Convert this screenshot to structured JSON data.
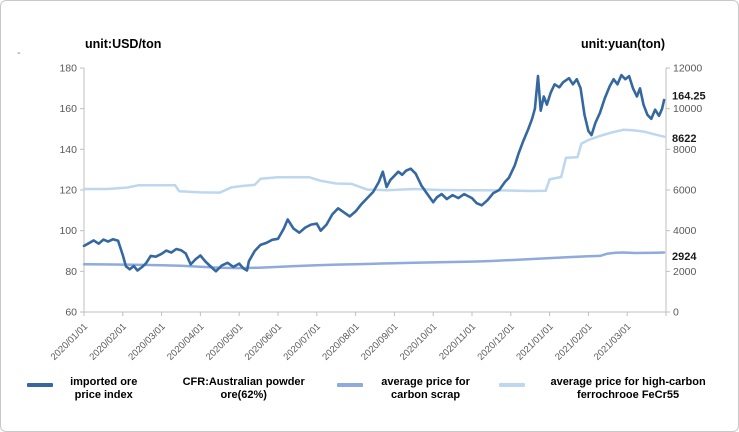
{
  "header": {
    "left_unit_label": "unit:USD/ton",
    "right_unit_label": "unit:yuan(ton)",
    "corner_mark": "-"
  },
  "colors": {
    "imported_ore": "#3568A0",
    "carbon_scrap": "#8FAADC",
    "ferrochrome": "#BDD7EE",
    "axis_line": "#BFBFBF",
    "axis_text": "#595959",
    "data_label_text": "#1a1a1a"
  },
  "legend": {
    "entries": [
      {
        "label": "imported ore price index",
        "color": "#3568A0"
      },
      {
        "label": "CFR:Australian powder ore(62%)",
        "color": null
      },
      {
        "label": "average price for carbon scrap",
        "color": "#8FAADC"
      },
      {
        "label": "average price for high-carbon ferrochrooe FeCr55",
        "color": "#BDD7EE"
      }
    ]
  },
  "chart_data": {
    "type": "line",
    "grid": false,
    "legend_position": "bottom",
    "months_span": 15,
    "x_labels": [
      "2020/01/01",
      "2020/02/01",
      "2020/03/01",
      "2020/04/01",
      "2020/05/01",
      "2020/06/01",
      "2020/07/01",
      "2020/08/01",
      "2020/09/01",
      "2020/10/01",
      "2020/11/01",
      "2020/12/01",
      "2021/01/01",
      "2021/02/01",
      "2021/03/01"
    ],
    "left_axis": {
      "title": "unit:USD/ton",
      "min": 60,
      "max": 180,
      "step": 20,
      "tick_values": [
        180,
        160,
        140,
        120,
        100,
        80,
        60
      ]
    },
    "right_axis": {
      "title": "unit:yuan(ton)",
      "min": 0,
      "max": 12000,
      "step": 2000,
      "tick_values": [
        12000,
        10000,
        8000,
        6000,
        4000,
        2000,
        0
      ]
    },
    "series": [
      {
        "name": "imported ore price index",
        "slug": "imported-ore-price-index",
        "axis": "left",
        "color": "#3568A0",
        "width": 2.6,
        "end_label": "164.25",
        "end_label_dy": -4,
        "points": [
          [
            0,
            92.5
          ],
          [
            0.12,
            93.8
          ],
          [
            0.25,
            95.2
          ],
          [
            0.38,
            93.6
          ],
          [
            0.5,
            95.6
          ],
          [
            0.62,
            94.6
          ],
          [
            0.75,
            95.8
          ],
          [
            0.88,
            95
          ],
          [
            1,
            88
          ],
          [
            1.08,
            82.5
          ],
          [
            1.18,
            81
          ],
          [
            1.28,
            82.6
          ],
          [
            1.38,
            80.4
          ],
          [
            1.5,
            82.2
          ],
          [
            1.6,
            84
          ],
          [
            1.72,
            87.6
          ],
          [
            1.85,
            87.2
          ],
          [
            2,
            88.6
          ],
          [
            2.12,
            90.2
          ],
          [
            2.25,
            89.2
          ],
          [
            2.38,
            91
          ],
          [
            2.5,
            90.4
          ],
          [
            2.62,
            88.8
          ],
          [
            2.75,
            83.4
          ],
          [
            2.88,
            86
          ],
          [
            3,
            87.8
          ],
          [
            3.12,
            85
          ],
          [
            3.25,
            82.6
          ],
          [
            3.4,
            80
          ],
          [
            3.55,
            82.8
          ],
          [
            3.7,
            84.2
          ],
          [
            3.85,
            82.2
          ],
          [
            4,
            83.8
          ],
          [
            4.1,
            81.6
          ],
          [
            4.2,
            80.4
          ],
          [
            4.25,
            85
          ],
          [
            4.4,
            90
          ],
          [
            4.55,
            93
          ],
          [
            4.7,
            94
          ],
          [
            4.85,
            95.5
          ],
          [
            5,
            96
          ],
          [
            5.15,
            101
          ],
          [
            5.25,
            105.5
          ],
          [
            5.4,
            101
          ],
          [
            5.55,
            99
          ],
          [
            5.7,
            101.5
          ],
          [
            5.85,
            103
          ],
          [
            6,
            103.5
          ],
          [
            6.1,
            100
          ],
          [
            6.25,
            103
          ],
          [
            6.4,
            108
          ],
          [
            6.55,
            111
          ],
          [
            6.7,
            109
          ],
          [
            6.85,
            107
          ],
          [
            7,
            109.5
          ],
          [
            7.15,
            113
          ],
          [
            7.3,
            116
          ],
          [
            7.45,
            119
          ],
          [
            7.6,
            124
          ],
          [
            7.7,
            129
          ],
          [
            7.8,
            121.5
          ],
          [
            7.9,
            125
          ],
          [
            8,
            127
          ],
          [
            8.1,
            129
          ],
          [
            8.2,
            127.5
          ],
          [
            8.3,
            129.5
          ],
          [
            8.42,
            130.5
          ],
          [
            8.55,
            128
          ],
          [
            8.7,
            122
          ],
          [
            8.85,
            118
          ],
          [
            9,
            114
          ],
          [
            9.1,
            116.5
          ],
          [
            9.22,
            118
          ],
          [
            9.35,
            115.5
          ],
          [
            9.5,
            117.5
          ],
          [
            9.65,
            116
          ],
          [
            9.8,
            118
          ],
          [
            9.9,
            117
          ],
          [
            10,
            116
          ],
          [
            10.12,
            113.5
          ],
          [
            10.25,
            112.5
          ],
          [
            10.4,
            115
          ],
          [
            10.55,
            118.5
          ],
          [
            10.7,
            120
          ],
          [
            10.85,
            124
          ],
          [
            10.95,
            126
          ],
          [
            11.1,
            132
          ],
          [
            11.2,
            138
          ],
          [
            11.32,
            144
          ],
          [
            11.45,
            150
          ],
          [
            11.55,
            155
          ],
          [
            11.62,
            160
          ],
          [
            11.7,
            176
          ],
          [
            11.77,
            159
          ],
          [
            11.85,
            166
          ],
          [
            11.93,
            162
          ],
          [
            12.03,
            168
          ],
          [
            12.13,
            172
          ],
          [
            12.25,
            170.5
          ],
          [
            12.35,
            173
          ],
          [
            12.5,
            175
          ],
          [
            12.6,
            172
          ],
          [
            12.7,
            174.5
          ],
          [
            12.8,
            170
          ],
          [
            12.9,
            157
          ],
          [
            13,
            149
          ],
          [
            13.08,
            147
          ],
          [
            13.18,
            153
          ],
          [
            13.3,
            158
          ],
          [
            13.42,
            165
          ],
          [
            13.55,
            171
          ],
          [
            13.65,
            174.5
          ],
          [
            13.75,
            172
          ],
          [
            13.85,
            176.5
          ],
          [
            13.95,
            174.5
          ],
          [
            14.05,
            176
          ],
          [
            14.15,
            170
          ],
          [
            14.25,
            166
          ],
          [
            14.33,
            170
          ],
          [
            14.42,
            162
          ],
          [
            14.52,
            157
          ],
          [
            14.62,
            155
          ],
          [
            14.72,
            159.5
          ],
          [
            14.82,
            156.5
          ],
          [
            14.9,
            160
          ],
          [
            14.95,
            164.25
          ]
        ]
      },
      {
        "name": "average price for carbon scrap",
        "slug": "average-price-for-carbon-scrap",
        "axis": "right",
        "color": "#8FAADC",
        "width": 2.5,
        "end_label": "2924",
        "end_label_dy": 4,
        "points": [
          [
            0,
            2350
          ],
          [
            0.5,
            2340
          ],
          [
            1,
            2330
          ],
          [
            1.5,
            2315
          ],
          [
            2,
            2300
          ],
          [
            2.5,
            2270
          ],
          [
            3,
            2230
          ],
          [
            3.5,
            2180
          ],
          [
            4,
            2160
          ],
          [
            4.5,
            2180
          ],
          [
            5,
            2220
          ],
          [
            5.5,
            2260
          ],
          [
            6,
            2300
          ],
          [
            6.5,
            2330
          ],
          [
            7,
            2350
          ],
          [
            7.5,
            2375
          ],
          [
            8,
            2400
          ],
          [
            8.5,
            2420
          ],
          [
            9,
            2440
          ],
          [
            9.5,
            2460
          ],
          [
            10,
            2480
          ],
          [
            10.5,
            2510
          ],
          [
            11,
            2550
          ],
          [
            11.5,
            2600
          ],
          [
            12,
            2650
          ],
          [
            12.5,
            2700
          ],
          [
            13,
            2740
          ],
          [
            13.3,
            2760
          ],
          [
            13.5,
            2870
          ],
          [
            13.7,
            2915
          ],
          [
            13.9,
            2925
          ],
          [
            14.2,
            2900
          ],
          [
            14.5,
            2905
          ],
          [
            14.75,
            2915
          ],
          [
            14.95,
            2924
          ]
        ]
      },
      {
        "name": "average price for high-carbon ferrochrooe FeCr55",
        "slug": "average-price-for-high-carbon-ferrochrooe-fecr55",
        "axis": "right",
        "color": "#BDD7EE",
        "width": 2.5,
        "end_label": "8622",
        "end_label_dy": 2,
        "points": [
          [
            0,
            6050
          ],
          [
            0.6,
            6050
          ],
          [
            1.1,
            6120
          ],
          [
            1.4,
            6230
          ],
          [
            2.1,
            6230
          ],
          [
            2.35,
            6230
          ],
          [
            2.45,
            5940
          ],
          [
            3,
            5880
          ],
          [
            3.5,
            5870
          ],
          [
            3.8,
            6130
          ],
          [
            4.1,
            6200
          ],
          [
            4.4,
            6250
          ],
          [
            4.55,
            6550
          ],
          [
            5,
            6630
          ],
          [
            5.8,
            6630
          ],
          [
            6.1,
            6450
          ],
          [
            6.5,
            6320
          ],
          [
            6.9,
            6300
          ],
          [
            7.3,
            6020
          ],
          [
            7.8,
            5990
          ],
          [
            8.5,
            6050
          ],
          [
            9.2,
            6000
          ],
          [
            10,
            5990
          ],
          [
            10.8,
            5980
          ],
          [
            11.5,
            5950
          ],
          [
            11.9,
            5960
          ],
          [
            12,
            6520
          ],
          [
            12.3,
            6640
          ],
          [
            12.42,
            7580
          ],
          [
            12.72,
            7620
          ],
          [
            12.82,
            8280
          ],
          [
            13,
            8460
          ],
          [
            13.3,
            8660
          ],
          [
            13.6,
            8830
          ],
          [
            13.9,
            8960
          ],
          [
            14.15,
            8940
          ],
          [
            14.45,
            8860
          ],
          [
            14.7,
            8740
          ],
          [
            14.95,
            8622
          ]
        ]
      }
    ]
  }
}
